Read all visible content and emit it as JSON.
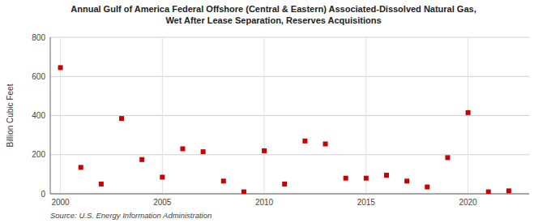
{
  "chart_data": {
    "type": "scatter",
    "title": "Annual Gulf of America Federal Offshore (Central & Eastern) Associated-Dissolved Natural Gas,\nWet After Lease Separation, Reserves Acquisitions",
    "y_label": "Billion Cubic Feet",
    "annotations": [
      "Source: U.S. Energy Information Administration"
    ],
    "x": [
      2000,
      2001,
      2002,
      2003,
      2004,
      2005,
      2006,
      2007,
      2008,
      2009,
      2010,
      2011,
      2012,
      2013,
      2014,
      2015,
      2016,
      2017,
      2018,
      2019,
      2020,
      2021,
      2022
    ],
    "values": [
      645,
      135,
      50,
      385,
      175,
      85,
      230,
      215,
      65,
      10,
      220,
      50,
      270,
      255,
      80,
      80,
      95,
      65,
      35,
      185,
      415,
      10,
      15
    ],
    "color": "#cc0000",
    "marker": "square",
    "xlim": [
      1999.5,
      2023
    ],
    "xticks": [
      2000,
      2005,
      2010,
      2015,
      2020
    ],
    "ylim": [
      0,
      800
    ],
    "yticks": [
      0,
      200,
      400,
      600,
      800
    ],
    "grid": true
  }
}
